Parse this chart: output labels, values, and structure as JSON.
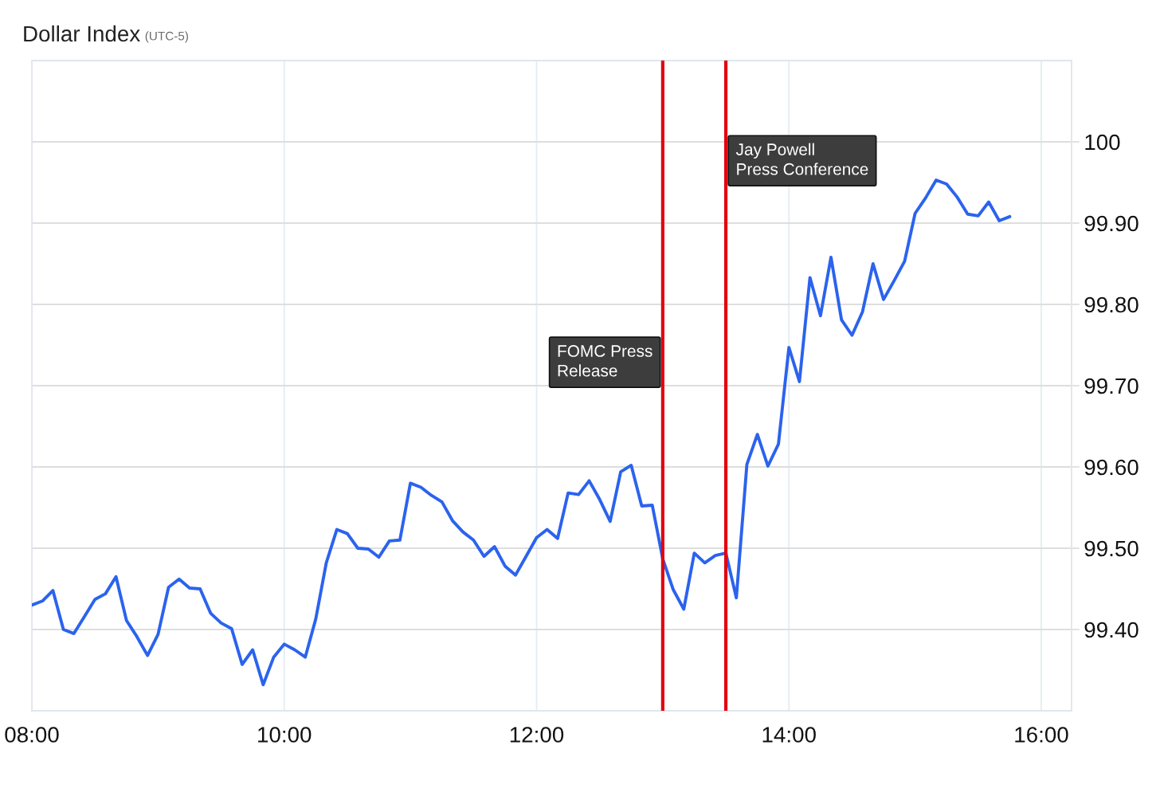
{
  "chart_data": {
    "type": "line",
    "title": "Dollar Index",
    "subtitle": "(UTC-5)",
    "x": [
      8,
      8.0833,
      8.1667,
      8.25,
      8.3333,
      8.4167,
      8.5,
      8.5833,
      8.6667,
      8.75,
      8.8333,
      8.9167,
      9,
      9.0833,
      9.1667,
      9.25,
      9.3333,
      9.4167,
      9.5,
      9.5833,
      9.6667,
      9.75,
      9.8333,
      9.9167,
      10,
      10.0833,
      10.1667,
      10.25,
      10.3333,
      10.4167,
      10.5,
      10.5833,
      10.6667,
      10.75,
      10.8333,
      10.9167,
      11,
      11.0833,
      11.1667,
      11.25,
      11.3333,
      11.4167,
      11.5,
      11.5833,
      11.6667,
      11.75,
      11.8333,
      11.9167,
      12,
      12.0833,
      12.1667,
      12.25,
      12.3333,
      12.4167,
      12.5,
      12.5833,
      12.6667,
      12.75,
      12.8333,
      12.9167,
      13,
      13.0833,
      13.1667,
      13.25,
      13.3333,
      13.4167,
      13.5,
      13.5833,
      13.6667,
      13.75,
      13.8333,
      13.9167,
      14,
      14.0833,
      14.1667,
      14.25,
      14.3333,
      14.4167,
      14.5,
      14.5833,
      14.6667,
      14.75,
      14.8333,
      14.9167,
      15,
      15.0833,
      15.1667,
      15.25,
      15.3333,
      15.4167,
      15.5,
      15.5833,
      15.6667,
      15.75
    ],
    "series": [
      {
        "color": "#2b63ee",
        "values": [
          99.43,
          99.435,
          99.448,
          99.4,
          99.395,
          99.416,
          99.437,
          99.444,
          99.465,
          99.411,
          99.391,
          99.368,
          99.394,
          99.452,
          99.462,
          99.451,
          99.45,
          99.42,
          99.408,
          99.401,
          99.357,
          99.375,
          99.332,
          99.366,
          99.382,
          99.375,
          99.366,
          99.413,
          99.482,
          99.523,
          99.518,
          99.5,
          99.499,
          99.489,
          99.509,
          99.51,
          99.58,
          99.575,
          99.565,
          99.557,
          99.534,
          99.52,
          99.51,
          99.49,
          99.502,
          99.478,
          99.467,
          99.49,
          99.513,
          99.523,
          99.512,
          99.568,
          99.566,
          99.583,
          99.56,
          99.533,
          99.594,
          99.602,
          99.552,
          99.553,
          99.487,
          99.449,
          99.425,
          99.494,
          99.482,
          99.491,
          99.494,
          99.439,
          99.603,
          99.64,
          99.601,
          99.628,
          99.747,
          99.705,
          99.833,
          99.786,
          99.858,
          99.781,
          99.762,
          99.791,
          99.85,
          99.806,
          99.829,
          99.853,
          99.912,
          99.931,
          99.953,
          99.948,
          99.932,
          99.911,
          99.909,
          99.926,
          99.903,
          99.908
        ]
      }
    ],
    "xlim": [
      8,
      16.24
    ],
    "xticks": [
      {
        "value": 8,
        "label": "08:00"
      },
      {
        "value": 10,
        "label": "10:00"
      },
      {
        "value": 12,
        "label": "12:00"
      },
      {
        "value": 14,
        "label": "14:00"
      },
      {
        "value": 16,
        "label": "16:00"
      }
    ],
    "ylim": [
      99.3,
      100.1
    ],
    "yticks": [
      {
        "value": 99.4,
        "label": "99.40"
      },
      {
        "value": 99.5,
        "label": "99.50"
      },
      {
        "value": 99.6,
        "label": "99.60"
      },
      {
        "value": 99.7,
        "label": "99.70"
      },
      {
        "value": 99.8,
        "label": "99.80"
      },
      {
        "value": 99.9,
        "label": "99.90"
      },
      100
    ],
    "grid": true,
    "line_style": "solid",
    "ref_lines": [
      {
        "axis": "x",
        "value": 13,
        "label": "FOMC Press\nRelease",
        "color": "#e3000f"
      },
      {
        "axis": "x",
        "value": 13.5,
        "label": "Jay Powell\nPress Conference",
        "color": "#e3000f"
      }
    ]
  }
}
